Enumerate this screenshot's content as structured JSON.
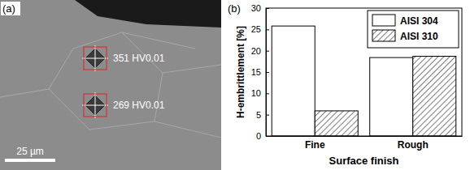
{
  "panel_labels": [
    "(a)",
    "(b)"
  ],
  "micrograph": {
    "indents": [
      {
        "label": "351 HV0.01"
      },
      {
        "label": "269 HV0.01"
      }
    ],
    "scale_bar": "25 µm"
  },
  "chart_data": {
    "type": "bar",
    "x_label": "Surface finish",
    "y_label": "H-embrittlement [%]",
    "categories": [
      "Fine",
      "Rough"
    ],
    "series": [
      {
        "name": "AISI 304",
        "color": "#ffffff",
        "values": [
          25.8,
          18.4
        ]
      },
      {
        "name": "AISI 310",
        "color": "#444444",
        "values": [
          5.9,
          18.7
        ]
      }
    ],
    "ylim": [
      0,
      30
    ],
    "yticks": [
      0,
      5,
      10,
      15,
      20,
      25,
      30
    ],
    "legend": "upper right"
  }
}
